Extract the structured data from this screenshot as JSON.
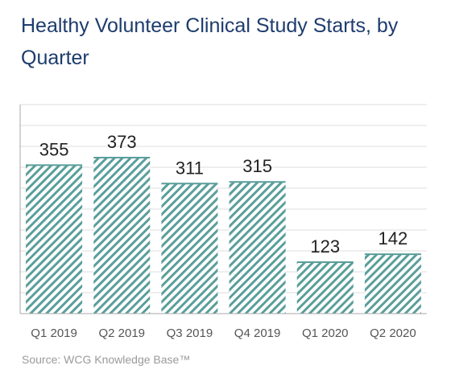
{
  "chart_data": {
    "type": "bar",
    "title": "Healthy Volunteer Clinical Study Starts, by Quarter",
    "categories": [
      "Q1 2019",
      "Q2 2019",
      "Q3 2019",
      "Q4 2019",
      "Q1 2020",
      "Q2 2020"
    ],
    "values": [
      355,
      373,
      311,
      315,
      123,
      142
    ],
    "xlabel": "",
    "ylabel": "",
    "ylim": [
      0,
      500
    ],
    "grid": true,
    "bar_fill": "hatched",
    "bar_color": "#5a9e9a",
    "grid_color": "#dcdcdc",
    "axis_color": "#aaaaaa",
    "label_color": "#222222",
    "tick_color": "#555555"
  },
  "source": "Source: WCG Knowledge Base™",
  "colors": {
    "title": "#1d3c6e"
  }
}
